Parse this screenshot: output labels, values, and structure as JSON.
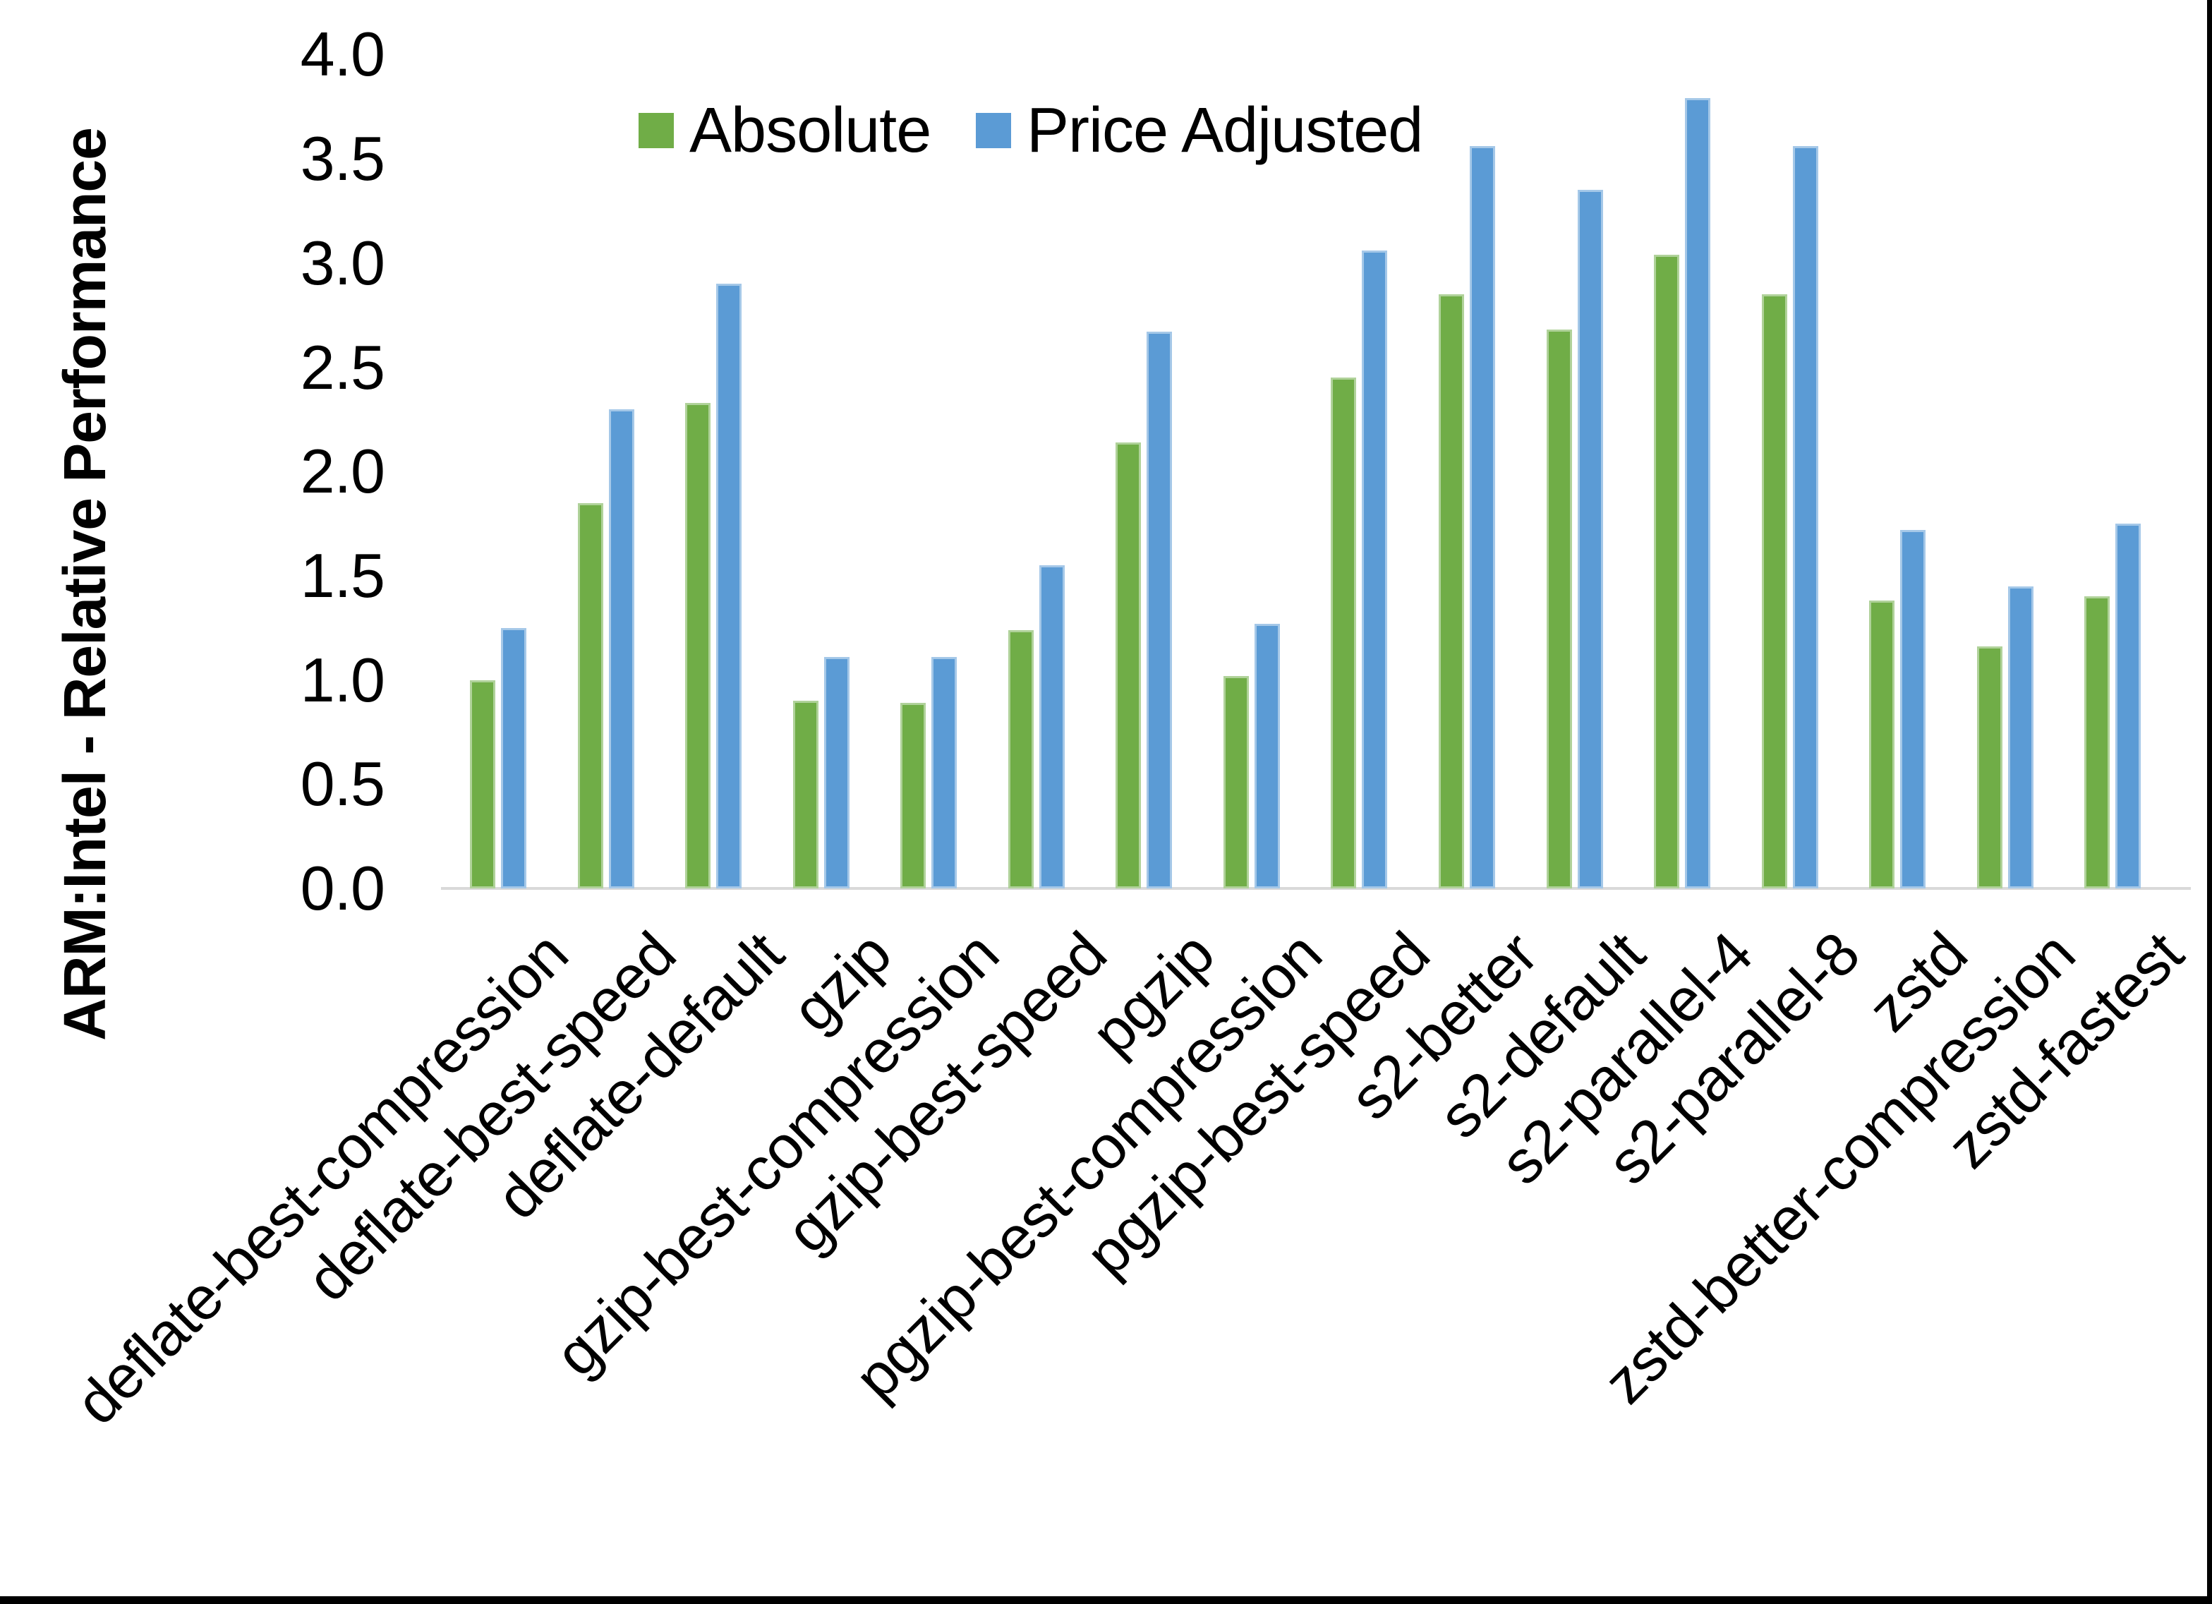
{
  "chart_data": {
    "type": "bar",
    "title": "",
    "xlabel": "",
    "ylabel": "ARM:Intel - Relative Performance",
    "ylim": [
      0.0,
      4.0
    ],
    "ytick_step": 0.5,
    "ytick_labels": [
      "0.0",
      "0.5",
      "1.0",
      "1.5",
      "2.0",
      "2.5",
      "3.0",
      "3.5",
      "4.0"
    ],
    "grid": false,
    "legend_position": "top-center",
    "categories": [
      "deflate-best-compression",
      "deflate-best-speed",
      "deflate-default",
      "gzip",
      "gzip-best-compression",
      "gzip-best-speed",
      "pgzip",
      "pgzip-best-compression",
      "pgzip-best-speed",
      "s2-better",
      "s2-default",
      "s2-parallel-4",
      "s2-parallel-8",
      "zstd",
      "zstd-better-compression",
      "zstd-fastest"
    ],
    "series": [
      {
        "name": "Absolute",
        "color": "#70AD47",
        "values": [
          1.0,
          1.85,
          2.33,
          0.9,
          0.89,
          1.24,
          2.14,
          1.02,
          2.45,
          2.85,
          2.68,
          3.04,
          2.85,
          1.38,
          1.16,
          1.4
        ]
      },
      {
        "name": "Price Adjusted",
        "color": "#5B9BD5",
        "values": [
          1.25,
          2.3,
          2.9,
          1.11,
          1.11,
          1.55,
          2.67,
          1.27,
          3.06,
          3.56,
          3.35,
          3.79,
          3.56,
          1.72,
          1.45,
          1.75
        ]
      }
    ]
  },
  "colors": {
    "absolute_green": "#70AD47",
    "price_adjusted_blue": "#5B9BD5",
    "axis_line": "#D9D9D9",
    "text": "#000000",
    "background": "#FFFFFF",
    "frame": "#000000"
  }
}
